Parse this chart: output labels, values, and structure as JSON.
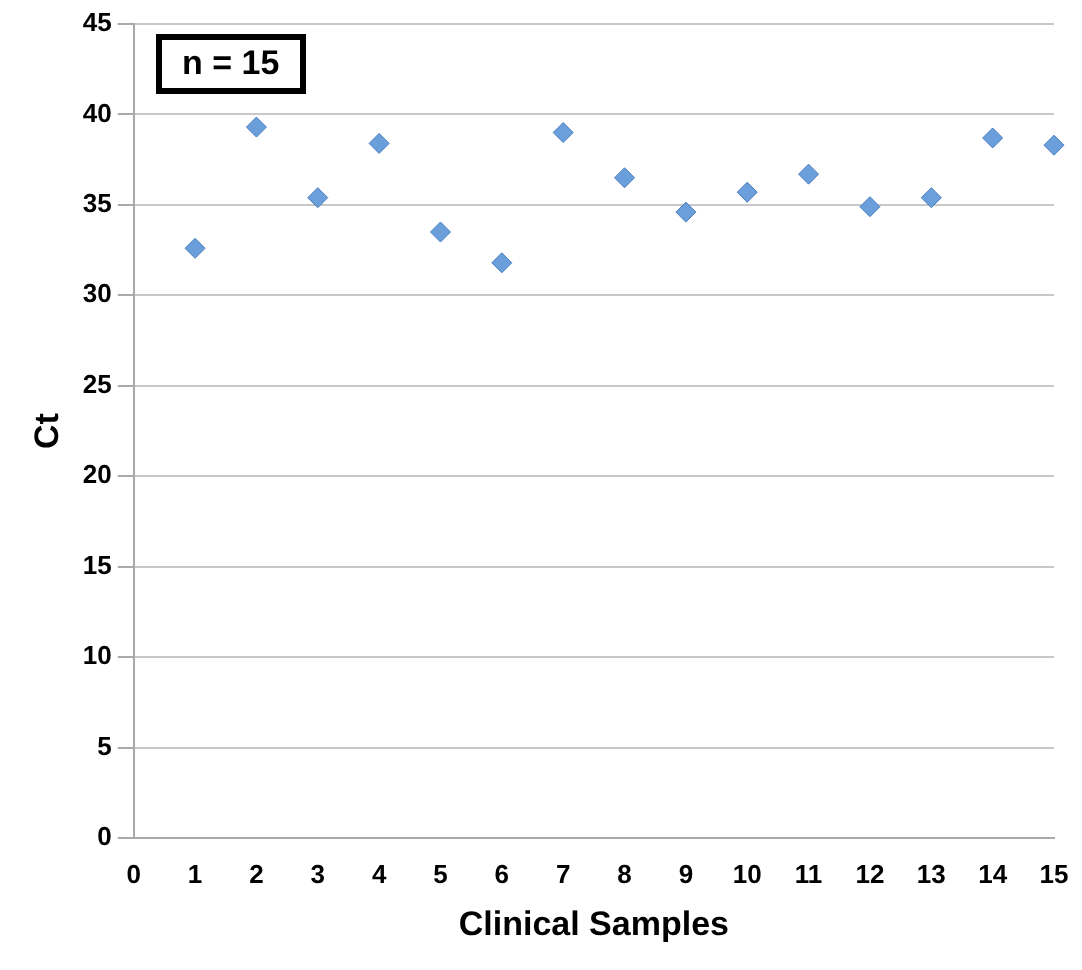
{
  "chart_data": {
    "type": "scatter",
    "xlabel": "Clinical Samples",
    "ylabel": "Ct",
    "annotations": [
      "n = 15"
    ],
    "x": [
      1,
      2,
      3,
      4,
      5,
      6,
      7,
      8,
      9,
      10,
      11,
      12,
      13,
      14,
      15
    ],
    "series": [
      {
        "color": "#6a9fdc",
        "values": [
          32.6,
          39.3,
          35.4,
          38.4,
          33.5,
          31.8,
          39.0,
          36.5,
          34.6,
          35.7,
          36.7,
          34.9,
          35.4,
          38.7,
          38.3
        ]
      }
    ],
    "xlim": [
      0,
      15
    ],
    "xticks": [
      0,
      1,
      2,
      3,
      4,
      5,
      6,
      7,
      8,
      9,
      10,
      11,
      12,
      13,
      14,
      15
    ],
    "ylim": [
      0,
      45
    ],
    "yticks": [
      0,
      5,
      10,
      15,
      20,
      25,
      30,
      35,
      40,
      45
    ],
    "grid": "y",
    "marker": "diamond",
    "legend": false
  }
}
